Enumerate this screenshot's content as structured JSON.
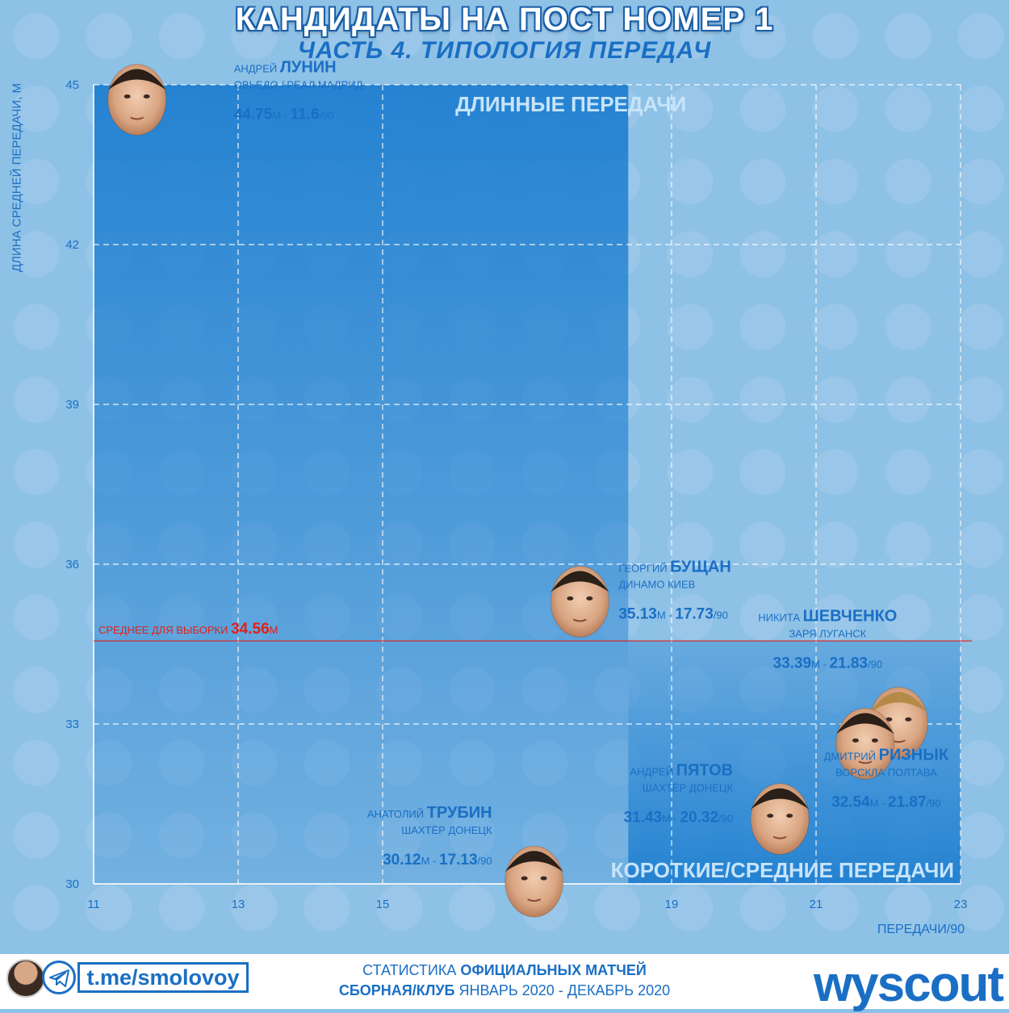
{
  "header": {
    "title": "КАНДИДАТЫ НА ПОСТ НОМЕР 1",
    "subtitle": "ЧАСТЬ 4. ТИПОЛОГИЯ ПЕРЕДАЧ"
  },
  "colors": {
    "background": "#8ec1e6",
    "zone": "#1f7fd0",
    "accent": "#1a6fc4",
    "mean_line": "#e0201b",
    "grid": "#ffffff"
  },
  "chart_data": {
    "type": "scatter",
    "xlabel": "ПЕРЕДАЧИ/90",
    "ylabel": "ДЛИНА СРЕДНЕЙ ПЕРЕДАЧИ, М",
    "xlim": [
      11,
      23
    ],
    "ylim": [
      30,
      45
    ],
    "xticks": [
      11,
      13,
      15,
      19,
      21,
      23
    ],
    "yticks": [
      30,
      33,
      36,
      39,
      42,
      45
    ],
    "grid": true,
    "zones": [
      {
        "label": "ДЛИННЫЕ ПЕРЕДАЧИ",
        "x0": 11,
        "x1": 18.4,
        "y0": 30,
        "y1": 45
      },
      {
        "label": "КОРОТКИЕ/СРЕДНИЕ ПЕРЕДАЧИ",
        "x0": 18.4,
        "x1": 23,
        "y0": 30,
        "y1": 34.56
      }
    ],
    "mean_line": {
      "y": 34.56,
      "label_prefix": "СРЕДНЕЕ ДЛЯ ВЫБОРКИ",
      "label_value": "34.56",
      "label_unit": "М"
    },
    "players": [
      {
        "first": "АНДРЕЙ",
        "last": "ЛУНИН",
        "club": "ОВЬЕДО / РЕАЛ МАДРИД",
        "x": 11.6,
        "y": 44.75,
        "length_label": "44.75",
        "passes_label": "11.6"
      },
      {
        "first": "ГЕОРГИЙ",
        "last": "БУЩАН",
        "club": "ДИНАМО КИЕВ",
        "x": 17.73,
        "y": 35.13,
        "length_label": "35.13",
        "passes_label": "17.73"
      },
      {
        "first": "НИКИТА",
        "last": "ШЕВЧЕНКО",
        "club": "ЗАРЯ ЛУГАНСК",
        "x": 21.83,
        "y": 33.39,
        "length_label": "33.39",
        "passes_label": "21.83"
      },
      {
        "first": "ДМИТРИЙ",
        "last": "РИЗНЫК",
        "club": "ВОРСКЛА ПОЛТАВА",
        "x": 21.87,
        "y": 32.54,
        "length_label": "32.54",
        "passes_label": "21.87"
      },
      {
        "first": "АНДРЕЙ",
        "last": "ПЯТОВ",
        "club": "ШАХТЁР ДОНЕЦК",
        "x": 20.32,
        "y": 31.43,
        "length_label": "31.43",
        "passes_label": "20.32"
      },
      {
        "first": "АНАТОЛИЙ",
        "last": "ТРУБИН",
        "club": "ШАХТЁР ДОНЕЦК",
        "x": 17.13,
        "y": 30.12,
        "length_label": "30.12",
        "passes_label": "17.13"
      }
    ],
    "units": {
      "length": "М",
      "per90": "/90",
      "sep": " - "
    }
  },
  "footer": {
    "handle": "t.me/smolovoy",
    "stats_line1_pre": "СТАТИСТИКА ",
    "stats_line1_bold": "ОФИЦИАЛЬНЫХ МАТЧЕЙ",
    "stats_line2_bold": "СБОРНАЯ/КЛУБ",
    "stats_line2_rest": " ЯНВАРЬ 2020 - ДЕКАБРЬ 2020",
    "brand": "wyscout"
  },
  "icons": [
    "telegram-icon",
    "author-avatar",
    "player-face"
  ]
}
